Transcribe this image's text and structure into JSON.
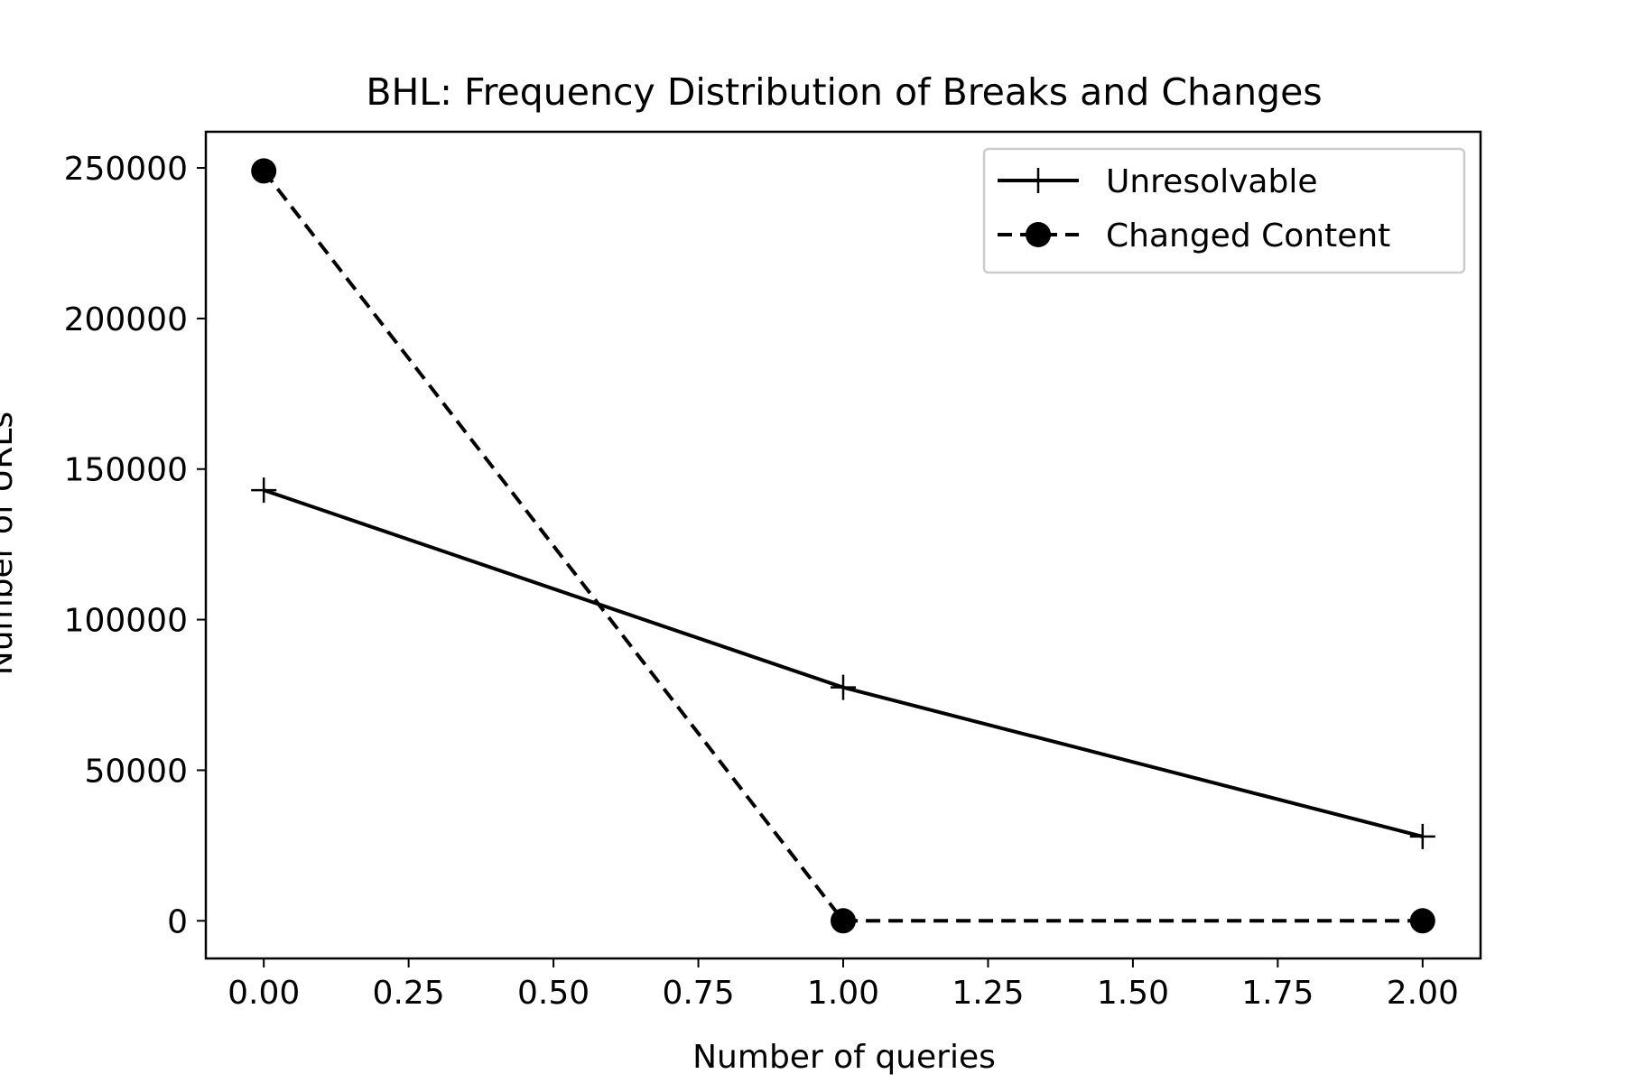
{
  "chart_data": {
    "type": "line",
    "title": "BHL: Frequency Distribution of Breaks and Changes",
    "xlabel": "Number of queries",
    "ylabel": "Number of URLs",
    "xlim": [
      -0.1,
      2.1
    ],
    "ylim": [
      -12500,
      262000
    ],
    "x_ticks": [
      0.0,
      0.25,
      0.5,
      0.75,
      1.0,
      1.25,
      1.5,
      1.75,
      2.0
    ],
    "x_tick_labels": [
      "0.00",
      "0.25",
      "0.50",
      "0.75",
      "1.00",
      "1.25",
      "1.50",
      "1.75",
      "2.00"
    ],
    "y_ticks": [
      0,
      50000,
      100000,
      150000,
      200000,
      250000
    ],
    "y_tick_labels": [
      "0",
      "50000",
      "100000",
      "150000",
      "200000",
      "250000"
    ],
    "grid": false,
    "legend_position": "top-right",
    "series": [
      {
        "name": "Unresolvable",
        "x": [
          0,
          1,
          2
        ],
        "values": [
          143000,
          77500,
          28000
        ],
        "line_style": "solid",
        "marker": "plus",
        "color": "#000000"
      },
      {
        "name": "Changed Content",
        "x": [
          0,
          1,
          2
        ],
        "values": [
          249000,
          0,
          0
        ],
        "line_style": "dashed",
        "marker": "circle",
        "color": "#000000"
      }
    ]
  }
}
